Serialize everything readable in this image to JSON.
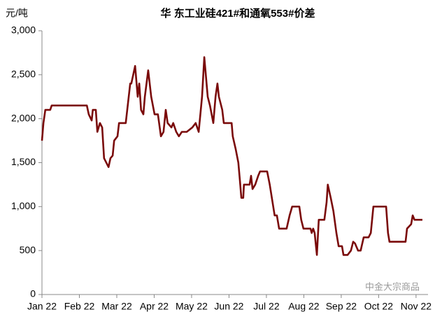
{
  "chart_data": {
    "type": "line",
    "title": "华 东工业硅421#和通氧553#价差",
    "y_label": "元/吨",
    "watermark": "中金大宗商品",
    "color": "#7a0a0a",
    "x": [
      0,
      0.04,
      0.09,
      0.22,
      0.26,
      1.2,
      1.25,
      1.33,
      1.36,
      1.44,
      1.48,
      1.55,
      1.61,
      1.66,
      1.78,
      1.83,
      1.89,
      1.93,
      2.02,
      2.06,
      2.24,
      2.36,
      2.39,
      2.49,
      2.56,
      2.6,
      2.65,
      2.71,
      2.75,
      2.84,
      2.92,
      3.01,
      3.1,
      3.18,
      3.25,
      3.31,
      3.36,
      3.46,
      3.51,
      3.59,
      3.66,
      3.74,
      3.87,
      4.02,
      4.11,
      4.19,
      4.28,
      4.34,
      4.43,
      4.49,
      4.58,
      4.64,
      4.69,
      4.73,
      4.82,
      4.86,
      5.07,
      5.1,
      5.18,
      5.25,
      5.29,
      5.33,
      5.38,
      5.4,
      5.55,
      5.59,
      5.63,
      5.7,
      5.78,
      5.83,
      6.02,
      6.09,
      6.22,
      6.28,
      6.34,
      6.54,
      6.62,
      6.69,
      6.88,
      6.93,
      6.99,
      7.18,
      7.21,
      7.25,
      7.29,
      7.35,
      7.4,
      7.55,
      7.61,
      7.64,
      7.72,
      7.79,
      7.87,
      7.93,
      8.02,
      8.06,
      8.17,
      8.26,
      8.32,
      8.37,
      8.45,
      8.52,
      8.6,
      8.73,
      8.79,
      8.86,
      9.2,
      9.25,
      9.29,
      9.72,
      9.76,
      9.87,
      9.91,
      9.96,
      10.17
    ],
    "values": [
      1750,
      1950,
      2100,
      2100,
      2150,
      2150,
      2050,
      1980,
      2100,
      2100,
      1850,
      1950,
      1900,
      1550,
      1450,
      1550,
      1580,
      1750,
      1800,
      1950,
      1950,
      2400,
      2400,
      2600,
      2250,
      2400,
      2100,
      2050,
      2250,
      2550,
      2250,
      2050,
      2050,
      1800,
      1850,
      2100,
      1950,
      1900,
      1950,
      1850,
      1800,
      1850,
      1850,
      1900,
      1950,
      1850,
      2250,
      2700,
      2250,
      2150,
      1950,
      2250,
      2400,
      2250,
      2100,
      1950,
      1950,
      1800,
      1650,
      1500,
      1300,
      1100,
      1100,
      1250,
      1250,
      1350,
      1200,
      1250,
      1350,
      1400,
      1400,
      1250,
      900,
      900,
      750,
      750,
      900,
      1000,
      1000,
      850,
      750,
      750,
      700,
      750,
      700,
      450,
      850,
      850,
      1050,
      1250,
      1100,
      950,
      700,
      550,
      550,
      450,
      450,
      500,
      600,
      580,
      500,
      500,
      650,
      650,
      700,
      1000,
      1000,
      700,
      600,
      600,
      750,
      800,
      900,
      850,
      850
    ],
    "xlim": [
      0,
      10.32
    ],
    "xticks": [
      {
        "value": 0,
        "label": "Jan 22"
      },
      {
        "value": 1,
        "label": "Feb 22"
      },
      {
        "value": 2,
        "label": "Mar 22"
      },
      {
        "value": 3,
        "label": "Apr 22"
      },
      {
        "value": 4,
        "label": "May 22"
      },
      {
        "value": 5,
        "label": "Jun 22"
      },
      {
        "value": 6,
        "label": "Jul 22"
      },
      {
        "value": 7,
        "label": "Aug 22"
      },
      {
        "value": 8,
        "label": "Sep 22"
      },
      {
        "value": 9,
        "label": "Oct 22"
      },
      {
        "value": 10,
        "label": "Nov 22"
      }
    ],
    "ylim": [
      0,
      3000
    ],
    "yticks": [
      0,
      500,
      {
        "value": 1000,
        "label": "1,000"
      },
      {
        "value": 1500,
        "label": "1,500"
      },
      {
        "value": 2000,
        "label": "2,000"
      },
      {
        "value": 2500,
        "label": "2,500"
      },
      {
        "value": 3000,
        "label": "3,000"
      }
    ],
    "grid": false
  }
}
